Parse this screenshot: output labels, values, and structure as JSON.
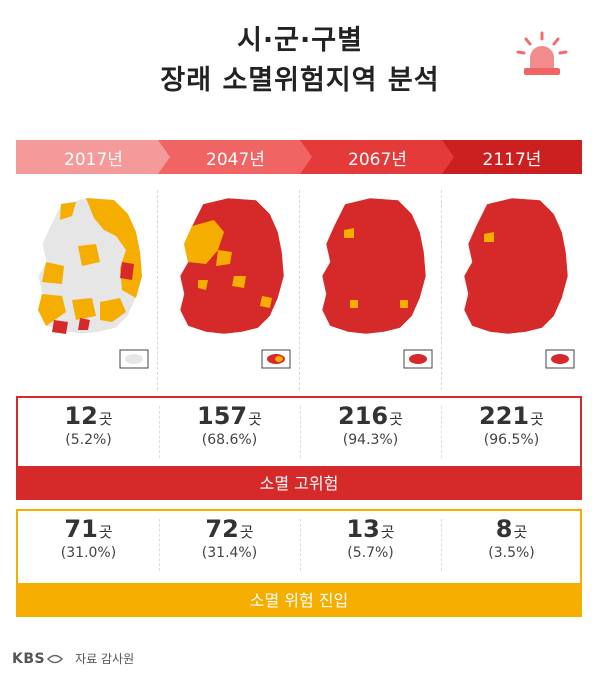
{
  "title": {
    "line1": "시·군·구별",
    "line2": "장래 소멸위험지역 분석"
  },
  "years": [
    "2017년",
    "2047년",
    "2067년",
    "2117년"
  ],
  "high_risk": {
    "label": "소멸 고위험",
    "items": [
      {
        "count": "12",
        "unit": "곳",
        "pct": "(5.2%)"
      },
      {
        "count": "157",
        "unit": "곳",
        "pct": "(68.6%)"
      },
      {
        "count": "216",
        "unit": "곳",
        "pct": "(94.3%)"
      },
      {
        "count": "221",
        "unit": "곳",
        "pct": "(96.5%)"
      }
    ]
  },
  "risk_entry": {
    "label": "소멸 위험 진입",
    "items": [
      {
        "count": "71",
        "unit": "곳",
        "pct": "(31.0%)"
      },
      {
        "count": "72",
        "unit": "곳",
        "pct": "(31.4%)"
      },
      {
        "count": "13",
        "unit": "곳",
        "pct": "(5.7%)"
      },
      {
        "count": "8",
        "unit": "곳",
        "pct": "(3.5%)"
      }
    ]
  },
  "footer": {
    "logo": "KBS",
    "source": "자료 감사원"
  },
  "colors": {
    "high_risk": "#d62a2a",
    "risk_entry": "#f5ad00",
    "low": "#e6e6e6",
    "header": [
      "#f59a9a",
      "#f06464",
      "#e43a3a",
      "#cc1f1f"
    ]
  }
}
